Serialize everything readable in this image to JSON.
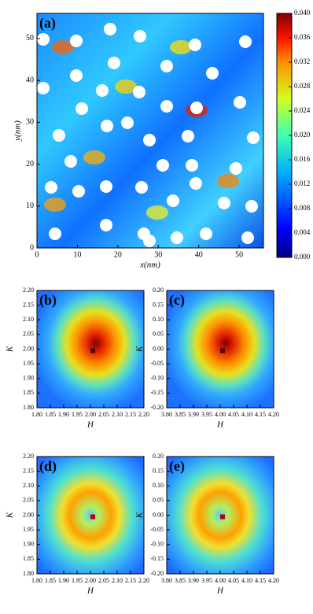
{
  "chart_data": [
    {
      "type": "heatmap",
      "panel_label": "(a)",
      "xlabel": "x(nm)",
      "ylabel": "y(nm)",
      "xlim": [
        0,
        56
      ],
      "ylim": [
        0,
        56
      ],
      "xticks": [
        0,
        10,
        20,
        30,
        40,
        50
      ],
      "yticks": [
        0,
        10,
        20,
        30,
        40,
        50
      ],
      "colorbar": {
        "clim": [
          0,
          0.04
        ],
        "ticks": [
          {
            "value": 0,
            "label": "0.000"
          },
          {
            "value": 0.004,
            "label": "0.004"
          },
          {
            "value": 0.008,
            "label": "0.008"
          },
          {
            "value": 0.012,
            "label": "0.012"
          },
          {
            "value": 0.016,
            "label": "0.016"
          },
          {
            "value": 0.02,
            "label": "0.020"
          },
          {
            "value": 0.024,
            "label": "0.024"
          },
          {
            "value": 0.028,
            "label": "0.028"
          },
          {
            "value": 0.032,
            "label": "0.032"
          },
          {
            "value": 0.036,
            "label": "0.036"
          },
          {
            "value": 0.04,
            "label": "0.040"
          }
        ]
      }
    },
    {
      "type": "heatmap",
      "panel_label": "(b)",
      "xlabel": "H",
      "ylabel": "K",
      "xlim": [
        1.8,
        2.2
      ],
      "ylim": [
        1.8,
        2.2
      ],
      "xticks": [
        {
          "value": 1.8,
          "label": "1.80"
        },
        {
          "value": 1.85,
          "label": "1.85"
        },
        {
          "value": 1.9,
          "label": "1.90"
        },
        {
          "value": 1.95,
          "label": "1.95"
        },
        {
          "value": 2,
          "label": "2.00"
        },
        {
          "value": 2.05,
          "label": "2.05"
        },
        {
          "value": 2.1,
          "label": "2.10"
        },
        {
          "value": 2.15,
          "label": "2.15"
        },
        {
          "value": 2.2,
          "label": "2.20"
        }
      ],
      "yticks": [
        {
          "value": 1.8,
          "label": "1.80"
        },
        {
          "value": 1.85,
          "label": "1.85"
        },
        {
          "value": 1.9,
          "label": "1.90"
        },
        {
          "value": 1.95,
          "label": "1.95"
        },
        {
          "value": 2,
          "label": "2.00"
        },
        {
          "value": 2.05,
          "label": "2.05"
        },
        {
          "value": 2.1,
          "label": "2.10"
        },
        {
          "value": 2.15,
          "label": "2.15"
        },
        {
          "value": 2.2,
          "label": "2.20"
        }
      ]
    },
    {
      "type": "heatmap",
      "panel_label": "(c)",
      "xlabel": "H",
      "ylabel": "K",
      "xlim": [
        3.8,
        4.2
      ],
      "ylim": [
        -0.2,
        0.2
      ],
      "xticks": [
        {
          "value": 3.8,
          "label": "3.80"
        },
        {
          "value": 3.85,
          "label": "3.85"
        },
        {
          "value": 3.9,
          "label": "3.90"
        },
        {
          "value": 3.95,
          "label": "3.95"
        },
        {
          "value": 4,
          "label": "4.00"
        },
        {
          "value": 4.05,
          "label": "4.05"
        },
        {
          "value": 4.1,
          "label": "4.10"
        },
        {
          "value": 4.15,
          "label": "4.15"
        },
        {
          "value": 4.2,
          "label": "4.20"
        }
      ],
      "yticks": [
        {
          "value": -0.2,
          "label": "-0.20"
        },
        {
          "value": -0.15,
          "label": "-0.15"
        },
        {
          "value": -0.1,
          "label": "-0.10"
        },
        {
          "value": -0.05,
          "label": "-0.05"
        },
        {
          "value": 0,
          "label": "0.00"
        },
        {
          "value": 0.05,
          "label": "0.05"
        },
        {
          "value": 0.1,
          "label": "0.10"
        },
        {
          "value": 0.15,
          "label": "0.15"
        },
        {
          "value": 0.2,
          "label": "0.20"
        }
      ]
    },
    {
      "type": "heatmap",
      "panel_label": "(d)",
      "xlabel": "H",
      "ylabel": "K",
      "xlim": [
        1.8,
        2.2
      ],
      "ylim": [
        1.8,
        2.2
      ],
      "xticks": [
        {
          "value": 1.8,
          "label": "1.80"
        },
        {
          "value": 1.85,
          "label": "1.85"
        },
        {
          "value": 1.9,
          "label": "1.90"
        },
        {
          "value": 1.95,
          "label": "1.95"
        },
        {
          "value": 2,
          "label": "2.00"
        },
        {
          "value": 2.05,
          "label": "2.05"
        },
        {
          "value": 2.1,
          "label": "2.10"
        },
        {
          "value": 2.15,
          "label": "2.15"
        },
        {
          "value": 2.2,
          "label": "2.20"
        }
      ],
      "yticks": [
        {
          "value": 1.8,
          "label": "1.80"
        },
        {
          "value": 1.85,
          "label": "1.85"
        },
        {
          "value": 1.9,
          "label": "1.90"
        },
        {
          "value": 1.95,
          "label": "1.95"
        },
        {
          "value": 2,
          "label": "2.00"
        },
        {
          "value": 2.05,
          "label": "2.05"
        },
        {
          "value": 2.1,
          "label": "2.10"
        },
        {
          "value": 2.15,
          "label": "2.15"
        },
        {
          "value": 2.2,
          "label": "2.20"
        }
      ]
    },
    {
      "type": "heatmap",
      "panel_label": "(e)",
      "xlabel": "H",
      "ylabel": "K",
      "xlim": [
        3.8,
        4.2
      ],
      "ylim": [
        -0.2,
        0.2
      ],
      "xticks": [
        {
          "value": 3.8,
          "label": "3.80"
        },
        {
          "value": 3.85,
          "label": "3.85"
        },
        {
          "value": 3.9,
          "label": "3.90"
        },
        {
          "value": 3.95,
          "label": "3.95"
        },
        {
          "value": 4,
          "label": "4.00"
        },
        {
          "value": 4.05,
          "label": "4.05"
        },
        {
          "value": 4.1,
          "label": "4.10"
        },
        {
          "value": 4.15,
          "label": "4.15"
        },
        {
          "value": 4.2,
          "label": "4.20"
        }
      ],
      "yticks": [
        {
          "value": -0.2,
          "label": "-0.20"
        },
        {
          "value": -0.15,
          "label": "-0.15"
        },
        {
          "value": -0.1,
          "label": "-0.10"
        },
        {
          "value": -0.05,
          "label": "-0.05"
        },
        {
          "value": 0,
          "label": "0.00"
        },
        {
          "value": 0.05,
          "label": "0.05"
        },
        {
          "value": 0.1,
          "label": "0.10"
        },
        {
          "value": 0.15,
          "label": "0.15"
        },
        {
          "value": 0.2,
          "label": "0.20"
        }
      ]
    }
  ]
}
